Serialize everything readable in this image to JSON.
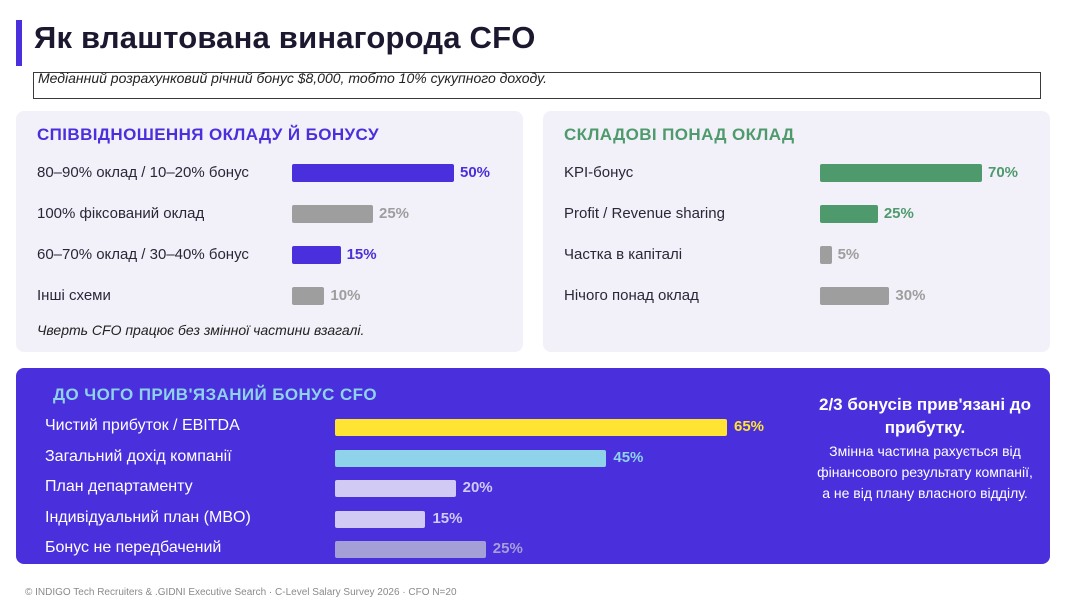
{
  "page": {
    "title": "Як влаштована винагорода CFO",
    "subtitle": "Медіанний розрахунковий річний бонус  $8,000, тобто 10% сукупного доходу.",
    "footer": "© INDIGO Tech Recruiters & .GIDNI Executive Search · C-Level Salary Survey 2026 · CFO N=20"
  },
  "colors": {
    "accent": "#4a2fdc",
    "green": "#4f9a6d",
    "gray": "#9e9e9e",
    "yellow": "#ffe433",
    "cyan": "#8fd3ea",
    "lavender": "#d0caf5",
    "muted_lavender": "#a59fd8"
  },
  "chart_data": [
    {
      "type": "bar",
      "orientation": "horizontal",
      "title": "СПІВВІДНОШЕННЯ ОКЛАДУ Й БОНУСУ",
      "categories": [
        "80–90% оклад / 10–20% бонус",
        "100% фіксований оклад",
        "60–70% оклад / 30–40% бонус",
        "Інші схеми"
      ],
      "values": [
        50,
        25,
        15,
        10
      ],
      "value_labels": [
        "50%",
        "25%",
        "15%",
        "10%"
      ],
      "bar_colors": [
        "#4a2fdc",
        "#9e9e9e",
        "#4a2fdc",
        "#9e9e9e"
      ],
      "xlim": [
        0,
        50
      ],
      "note": "Чверть CFO працює без змінної частини взагалі."
    },
    {
      "type": "bar",
      "orientation": "horizontal",
      "title": "СКЛАДОВІ ПОНАД ОКЛАД",
      "categories": [
        "KPI-бонус",
        "Profit / Revenue sharing",
        "Частка в капіталі",
        "Нічого понад оклад"
      ],
      "values": [
        70,
        25,
        5,
        30
      ],
      "value_labels": [
        "70%",
        "25%",
        "5%",
        "30%"
      ],
      "bar_colors": [
        "#4f9a6d",
        "#4f9a6d",
        "#9e9e9e",
        "#9e9e9e"
      ],
      "xlim": [
        0,
        70
      ]
    },
    {
      "type": "bar",
      "orientation": "horizontal",
      "title": "ДО ЧОГО ПРИВ'ЯЗАНИЙ БОНУС CFO",
      "categories": [
        "Чистий прибуток / EBITDA",
        "Загальний дохід компанії",
        "План департаменту",
        "Індивідуальний план (MBO)",
        "Бонус не передбачений"
      ],
      "values": [
        65,
        45,
        20,
        15,
        25
      ],
      "value_labels": [
        "65%",
        "45%",
        "20%",
        "15%",
        "25%"
      ],
      "bar_colors": [
        "#ffe433",
        "#8fd3ea",
        "#d0caf5",
        "#d0caf5",
        "#a59fd8"
      ],
      "value_label_colors": [
        "#ffe433",
        "#8fd3ea",
        "#d0caf5",
        "#d0caf5",
        "#a59fd8"
      ],
      "xlim": [
        0,
        65
      ]
    }
  ],
  "callout": {
    "headline": "2/3 бонусів прив'язані до прибутку.",
    "body": "Змінна частина рахується від фінансового результату компанії, а не від плану власного відділу."
  }
}
